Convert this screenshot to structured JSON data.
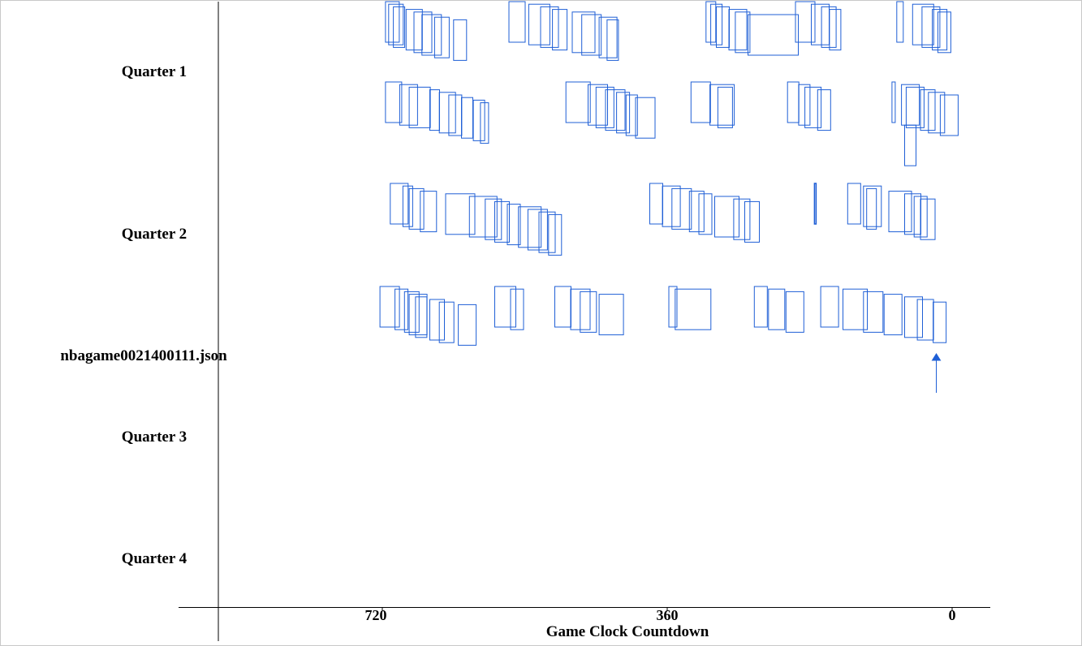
{
  "chart_data": {
    "type": "other",
    "title": "nbagame0021400111.json",
    "xlabel": "Game Clock Countdown",
    "x_ticks": [
      720,
      360,
      0
    ],
    "xlim": [
      720,
      0
    ],
    "quarter_labels": [
      "Quarter 1",
      "Quarter 2",
      "Quarter 3",
      "Quarter 4"
    ],
    "stroke_color": "#1f5fd6",
    "possessions": [
      {
        "row": 1,
        "events": [
          {
            "t": 716,
            "w": 17
          },
          {
            "t": 712,
            "w": 18
          },
          {
            "t": 706,
            "w": 14
          },
          {
            "t": 690,
            "w": 20
          },
          {
            "t": 680,
            "w": 22
          },
          {
            "t": 670,
            "w": 24
          },
          {
            "t": 654,
            "w": 18
          },
          {
            "t": 630,
            "w": 16
          },
          {
            "t": 560,
            "w": 20
          },
          {
            "t": 535,
            "w": 26
          },
          {
            "t": 520,
            "w": 22
          },
          {
            "t": 505,
            "w": 18
          },
          {
            "t": 480,
            "w": 28
          },
          {
            "t": 468,
            "w": 24
          },
          {
            "t": 446,
            "w": 22
          },
          {
            "t": 436,
            "w": 14
          },
          {
            "t": 311,
            "w": 12
          },
          {
            "t": 305,
            "w": 14
          },
          {
            "t": 298,
            "w": 16
          },
          {
            "t": 282,
            "w": 22
          },
          {
            "t": 274,
            "w": 18
          },
          {
            "t": 258,
            "w": 62
          },
          {
            "t": 198,
            "w": 24
          },
          {
            "t": 178,
            "w": 22
          },
          {
            "t": 165,
            "w": 18
          },
          {
            "t": 155,
            "w": 14
          },
          {
            "t": 70,
            "w": 8
          },
          {
            "t": 50,
            "w": 26
          },
          {
            "t": 38,
            "w": 22
          },
          {
            "t": 25,
            "w": 18
          },
          {
            "t": 18,
            "w": 16
          }
        ]
      },
      {
        "row": 2,
        "events": [
          {
            "t": 716,
            "w": 20
          },
          {
            "t": 698,
            "w": 22
          },
          {
            "t": 686,
            "w": 26
          },
          {
            "t": 660,
            "w": 12
          },
          {
            "t": 648,
            "w": 20
          },
          {
            "t": 636,
            "w": 16
          },
          {
            "t": 620,
            "w": 14
          },
          {
            "t": 605,
            "w": 14
          },
          {
            "t": 596,
            "w": 10
          },
          {
            "t": 488,
            "w": 30
          },
          {
            "t": 460,
            "w": 24
          },
          {
            "t": 450,
            "w": 22
          },
          {
            "t": 438,
            "w": 24
          },
          {
            "t": 424,
            "w": 16
          },
          {
            "t": 412,
            "w": 14
          },
          {
            "t": 400,
            "w": 24
          },
          {
            "t": 330,
            "w": 24
          },
          {
            "t": 306,
            "w": 30
          },
          {
            "t": 296,
            "w": 18
          },
          {
            "t": 208,
            "w": 14
          },
          {
            "t": 194,
            "w": 14
          },
          {
            "t": 186,
            "w": 20
          },
          {
            "t": 170,
            "w": 16
          },
          {
            "t": 76,
            "w": 4
          },
          {
            "t": 64,
            "w": 22
          },
          {
            "t": 58,
            "w": 22
          },
          {
            "t": 40,
            "w": 18
          },
          {
            "t": 30,
            "w": 20
          },
          {
            "t": 15,
            "w": 22
          },
          {
            "t": 60,
            "w": 14,
            "dy": 34
          }
        ]
      },
      {
        "row": 3,
        "events": [
          {
            "t": 710,
            "w": 22
          },
          {
            "t": 694,
            "w": 12
          },
          {
            "t": 686,
            "w": 18
          },
          {
            "t": 672,
            "w": 20
          },
          {
            "t": 640,
            "w": 36
          },
          {
            "t": 610,
            "w": 34
          },
          {
            "t": 590,
            "w": 20
          },
          {
            "t": 578,
            "w": 18
          },
          {
            "t": 562,
            "w": 16
          },
          {
            "t": 548,
            "w": 28
          },
          {
            "t": 536,
            "w": 24
          },
          {
            "t": 522,
            "w": 20
          },
          {
            "t": 510,
            "w": 16
          },
          {
            "t": 382,
            "w": 16
          },
          {
            "t": 366,
            "w": 22
          },
          {
            "t": 354,
            "w": 24
          },
          {
            "t": 332,
            "w": 18
          },
          {
            "t": 320,
            "w": 16
          },
          {
            "t": 300,
            "w": 30
          },
          {
            "t": 276,
            "w": 20
          },
          {
            "t": 262,
            "w": 18
          },
          {
            "t": 174,
            "w": 2
          },
          {
            "t": 132,
            "w": 16
          },
          {
            "t": 112,
            "w": 22
          },
          {
            "t": 108,
            "w": 12
          },
          {
            "t": 80,
            "w": 28
          },
          {
            "t": 60,
            "w": 20
          },
          {
            "t": 48,
            "w": 16
          },
          {
            "t": 40,
            "w": 18
          }
        ]
      },
      {
        "row": 4,
        "events": [
          {
            "t": 723,
            "w": 24
          },
          {
            "t": 704,
            "w": 16
          },
          {
            "t": 692,
            "w": 18
          },
          {
            "t": 686,
            "w": 22
          },
          {
            "t": 678,
            "w": 14
          },
          {
            "t": 660,
            "w": 18
          },
          {
            "t": 648,
            "w": 18
          },
          {
            "t": 624,
            "w": 22
          },
          {
            "t": 578,
            "w": 26
          },
          {
            "t": 558,
            "w": 16
          },
          {
            "t": 502,
            "w": 20
          },
          {
            "t": 482,
            "w": 24
          },
          {
            "t": 470,
            "w": 20
          },
          {
            "t": 446,
            "w": 30
          },
          {
            "t": 358,
            "w": 10
          },
          {
            "t": 350,
            "w": 44
          },
          {
            "t": 250,
            "w": 16
          },
          {
            "t": 232,
            "w": 20
          },
          {
            "t": 210,
            "w": 22
          },
          {
            "t": 166,
            "w": 22
          },
          {
            "t": 138,
            "w": 30
          },
          {
            "t": 112,
            "w": 24
          },
          {
            "t": 86,
            "w": 22
          },
          {
            "t": 60,
            "w": 22
          },
          {
            "t": 44,
            "w": 20
          },
          {
            "t": 24,
            "w": 16
          }
        ]
      }
    ]
  }
}
